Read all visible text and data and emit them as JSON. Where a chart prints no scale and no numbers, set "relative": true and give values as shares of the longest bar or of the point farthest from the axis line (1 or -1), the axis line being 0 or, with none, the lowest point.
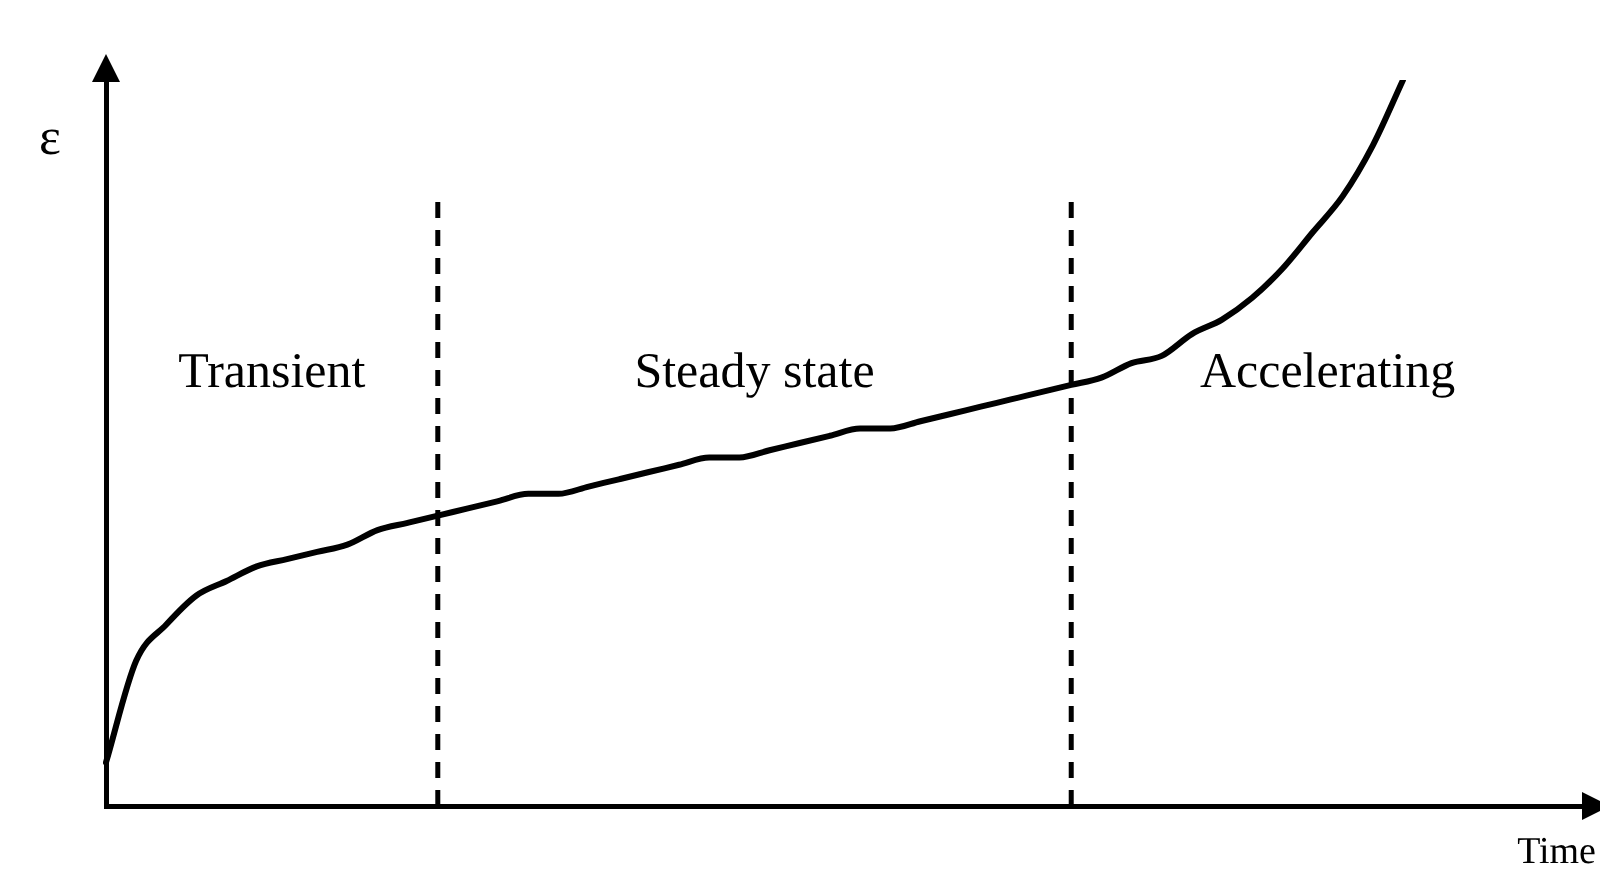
{
  "chart_data": {
    "type": "line",
    "xlabel": "Time",
    "ylabel": "ε",
    "relative": true,
    "color": "#000000",
    "marker": "none",
    "line_style": "solid",
    "legend": false,
    "grid": false,
    "categories": [
      null,
      null,
      null,
      null,
      null,
      null,
      null,
      null,
      null,
      null,
      null,
      null,
      null,
      null,
      null,
      null,
      null,
      null,
      null,
      null,
      null,
      null,
      null,
      null,
      null,
      null,
      null,
      null,
      null,
      null,
      null,
      null,
      null,
      null,
      null,
      null,
      null,
      null,
      null,
      null,
      null,
      null,
      null,
      null,
      null,
      null,
      null,
      null,
      null,
      null
    ],
    "values": [
      0.06,
      0.2,
      0.25,
      0.29,
      0.31,
      0.33,
      0.34,
      0.35,
      0.36,
      0.38,
      0.39,
      0.4,
      0.41,
      0.42,
      0.43,
      0.43,
      0.44,
      0.45,
      0.46,
      0.47,
      0.48,
      0.48,
      0.49,
      0.5,
      0.51,
      0.52,
      0.52,
      0.53,
      0.54,
      0.55,
      0.56,
      0.57,
      0.58,
      0.59,
      0.61,
      0.62,
      0.65,
      0.67,
      0.7,
      0.74,
      0.79,
      0.84,
      0.91,
      1.0,
      null,
      null,
      null,
      null,
      null,
      null
    ],
    "annotations": [
      "Transient",
      "Steady state",
      "Accelerating"
    ]
  }
}
